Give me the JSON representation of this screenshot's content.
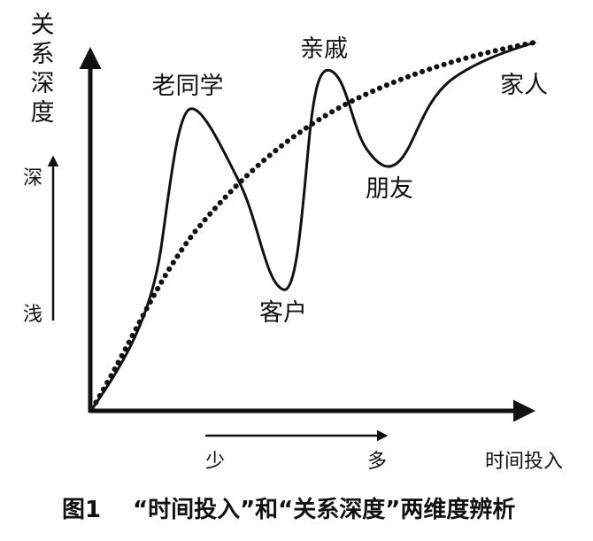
{
  "y_axis_label": [
    "关",
    "系",
    "深",
    "度"
  ],
  "x_axis_label": "时间投入",
  "depth_scale": {
    "high": "深",
    "low": "浅"
  },
  "time_scale": {
    "low": "少",
    "high": "多"
  },
  "relations": {
    "classmate": "老同学",
    "client": "客户",
    "relative": "亲戚",
    "friend": "朋友",
    "family": "家人"
  },
  "caption": {
    "number": "图1",
    "text": "“时间投入”和“关系深度”两维度辨析"
  },
  "colors": {
    "ink": "#111111"
  }
}
